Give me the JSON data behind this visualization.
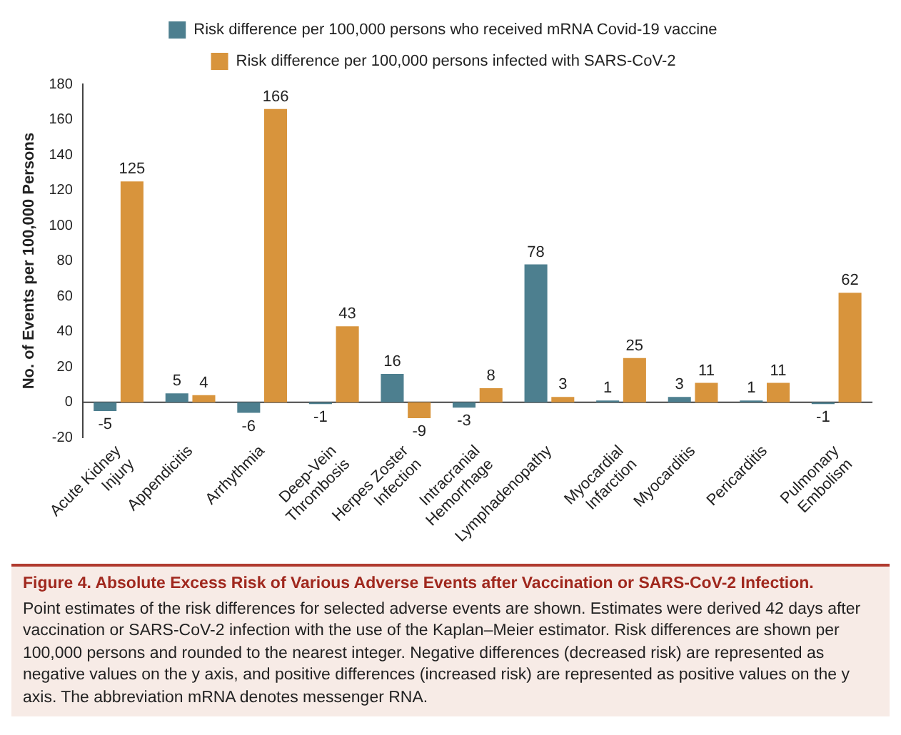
{
  "chart_data": {
    "type": "bar",
    "title": "Figure 4. Absolute Excess Risk of Various Adverse Events after Vaccination or SARS-CoV-2 Infection.",
    "subtitle": "Point estimates of the risk differences for selected adverse events are shown. Estimates were derived 42 days after vaccination or SARS-CoV-2 infection with the use of the Kaplan–Meier estimator. Risk differences are shown per 100,000 persons and rounded to the nearest integer. Negative differences (decreased risk) are represented as negative values on the y axis, and positive differences (increased risk) are represented as positive values on the y axis. The abbreviation mRNA denotes messenger RNA.",
    "ylabel": "No. of Events per 100,000 Persons",
    "categories": [
      "Acute Kidney\nInjury",
      "Appendicitis",
      "Arrhythmia",
      "Deep-Vein\nThrombosis",
      "Herpes Zoster\nInfection",
      "Intracranial\nHemorrhage",
      "Lymphadenopathy",
      "Myocardial\nInfarction",
      "Myocarditis",
      "Pericarditis",
      "Pulmonary\nEmbolism"
    ],
    "series": [
      {
        "name": "Risk difference per 100,000 persons who received mRNA Covid-19 vaccine",
        "color": "#4d7f8f",
        "values": [
          -5,
          5,
          -6,
          -1,
          16,
          -3,
          78,
          1,
          3,
          1,
          -1
        ]
      },
      {
        "name": "Risk difference per 100,000 persons infected with SARS-CoV-2",
        "color": "#d8943c",
        "values": [
          125,
          4,
          166,
          43,
          -9,
          8,
          3,
          25,
          11,
          11,
          62
        ]
      }
    ],
    "ylim": [
      -20,
      180
    ],
    "yticks": [
      -20,
      0,
      20,
      40,
      60,
      80,
      100,
      120,
      140,
      160,
      180
    ],
    "grid": false,
    "legend": "top",
    "data_labels": true
  }
}
